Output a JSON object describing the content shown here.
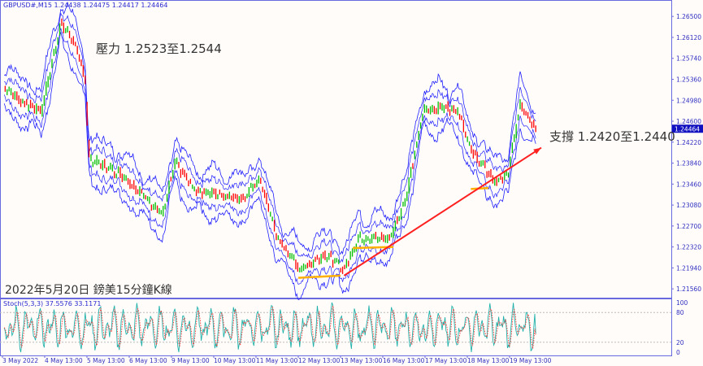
{
  "chart_data": {
    "type": "line",
    "symbol_header": "GBPUSD#,M15  1.24438 1.24475 1.24417 1.24464",
    "symbol": "GBPUSD#",
    "timeframe": "M15",
    "ohlc_last": {
      "open": 1.24438,
      "high": 1.24475,
      "low": 1.24417,
      "close": 1.24464
    },
    "current_price_label": "1.24464",
    "ylim": [
      1.214,
      1.2668
    ],
    "y_ticks": [
      "1.26500",
      "1.26120",
      "1.25740",
      "1.25360",
      "1.24980",
      "1.24600",
      "1.24220",
      "1.23840",
      "1.23460",
      "1.23080",
      "1.22700",
      "1.22320",
      "1.21940",
      "1.21560"
    ],
    "x_ticks": [
      "3 May 2022",
      "4 May 13:00",
      "5 May 13:00",
      "6 May 13:00",
      "9 May 13:00",
      "10 May 13:00",
      "11 May 13:00",
      "12 May 13:00",
      "13 May 13:00",
      "16 May 13:00",
      "17 May 13:00",
      "18 May 13:00",
      "19 May 13:00"
    ],
    "trading_days": [
      "3 May",
      "4 May",
      "5 May",
      "6 May",
      "9 May",
      "10 May",
      "11 May",
      "12 May",
      "13 May",
      "16 May",
      "17 May",
      "18 May",
      "19 May",
      "20 May"
    ],
    "price_path": [
      [
        "3 May",
        "14:00",
        1.2522
      ],
      [
        "4 May",
        "01:00",
        1.2493
      ],
      [
        "4 May",
        "11:00",
        1.2479
      ],
      [
        "4 May",
        "22:00",
        1.2637
      ],
      [
        "5 May",
        "05:00",
        1.2608
      ],
      [
        "5 May",
        "12:00",
        1.2536
      ],
      [
        "5 May",
        "14:00",
        1.2392
      ],
      [
        "6 May",
        "09:00",
        1.2363
      ],
      [
        "9 May",
        "08:00",
        1.2291
      ],
      [
        "9 May",
        "15:00",
        1.2385
      ],
      [
        "10 May",
        "02:00",
        1.2335
      ],
      [
        "11 May",
        "06:00",
        1.232
      ],
      [
        "11 May",
        "15:00",
        1.2356
      ],
      [
        "12 May",
        "01:00",
        1.2248
      ],
      [
        "12 May",
        "14:00",
        1.2191
      ],
      [
        "13 May",
        "04:00",
        1.2219
      ],
      [
        "13 May",
        "15:00",
        1.2191
      ],
      [
        "13 May",
        "23:00",
        1.2248
      ],
      [
        "16 May",
        "17:00",
        1.2248
      ],
      [
        "17 May",
        "02:00",
        1.232
      ],
      [
        "17 May",
        "12:00",
        1.2479
      ],
      [
        "17 May",
        "23:00",
        1.2486
      ],
      [
        "18 May",
        "08:00",
        1.2479
      ],
      [
        "18 May",
        "15:00",
        1.2407
      ],
      [
        "19 May",
        "05:00",
        1.2349
      ],
      [
        "19 May",
        "12:00",
        1.2363
      ],
      [
        "19 May",
        "19:00",
        1.2493
      ],
      [
        "20 May",
        "04:00",
        1.2446
      ]
    ],
    "annotations": {
      "resistance_text": "壓力 1.2523至1.2544",
      "support_text": "支撐 1.2420至1.2440",
      "caption": "2022年5月20日 鎊美15分鐘K線",
      "trendline": {
        "from": [
          "13 May",
          "15:00",
          1.218
        ],
        "to": [
          "20 May",
          "07:00",
          1.2412
        ],
        "color": "#ff2020"
      },
      "support_marks": [
        {
          "from": [
            "12 May",
            "13:00",
            1.2176
          ],
          "to": [
            "13 May",
            "13:00",
            1.218
          ]
        },
        {
          "from": [
            "13 May",
            "20:00",
            1.223
          ],
          "to": [
            "16 May",
            "19:00",
            1.2232
          ]
        },
        {
          "from": [
            "18 May",
            "15:00",
            1.2337
          ],
          "to": [
            "19 May",
            "01:00",
            1.2339
          ]
        }
      ],
      "support_mark_color": "#ffb000"
    },
    "stochastic": {
      "label": "Stoch(5,3,3) 37.5576 33.1171",
      "main": 37.5576,
      "signal": 33.1171,
      "levels": [
        20,
        80
      ],
      "range": [
        0,
        100
      ],
      "y_ticks": [
        "100",
        "80",
        "20",
        "0"
      ]
    },
    "colors": {
      "price": "#2020ff",
      "bull": "#00c000",
      "bear": "#ff0000",
      "axis": "#6a6ae0",
      "stoch_main": "#20b2aa",
      "stoch_signal": "#ff3030",
      "background": "#fffcfa"
    }
  }
}
